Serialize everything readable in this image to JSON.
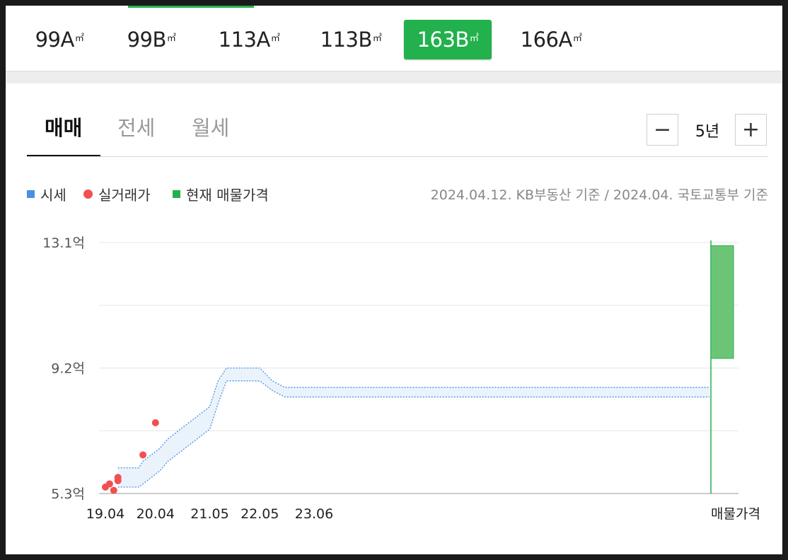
{
  "area_tabs": [
    {
      "label": "99A",
      "unit": "㎡",
      "active": false
    },
    {
      "label": "99B",
      "unit": "㎡",
      "active": false
    },
    {
      "label": "113A",
      "unit": "㎡",
      "active": false
    },
    {
      "label": "113B",
      "unit": "㎡",
      "active": false
    },
    {
      "label": "163B",
      "unit": "㎡",
      "active": true
    },
    {
      "label": "166A",
      "unit": "㎡",
      "active": false
    }
  ],
  "deal_tabs": [
    "매매",
    "전세",
    "월세"
  ],
  "period": {
    "minus": "−",
    "label": "5년",
    "plus": "+"
  },
  "legend": [
    {
      "label": "시세",
      "color": "#4a90e2",
      "shape": "square"
    },
    {
      "label": "실거래가",
      "color": "#f05050",
      "shape": "circle"
    },
    {
      "label": "현재 매물가격",
      "color": "#22b14c",
      "shape": "square"
    }
  ],
  "source_text": "2024.04.12. KB부동산 기준 / 2024.04. 국토교통부 기준",
  "chart_data": {
    "type": "line",
    "y_ticks": [
      "13.1억",
      "9.2억",
      "5.3억"
    ],
    "ylim": [
      5.3,
      13.1
    ],
    "x_ticks": [
      "19.04",
      "20.04",
      "21.05",
      "22.05",
      "23.06",
      "매물가격"
    ],
    "grid": true,
    "series": [
      {
        "name": "시세",
        "color": "#4a90e2",
        "style": "dotted band",
        "x": [
          "19.07",
          "19.12",
          "20.01",
          "20.03",
          "20.05",
          "20.07",
          "20.09",
          "20.11",
          "21.01",
          "21.03",
          "21.05",
          "21.07",
          "21.09",
          "21.12",
          "22.05",
          "22.08",
          "22.11",
          "23.03",
          "23.06",
          "23.09",
          "24.04"
        ],
        "low": [
          5.5,
          5.5,
          5.6,
          5.8,
          6.0,
          6.3,
          6.5,
          6.7,
          6.9,
          7.1,
          7.3,
          8.1,
          8.8,
          8.8,
          8.8,
          8.5,
          8.3,
          8.3,
          8.3,
          8.3,
          8.3
        ],
        "high": [
          6.1,
          6.1,
          6.3,
          6.5,
          6.7,
          7.0,
          7.2,
          7.4,
          7.6,
          7.8,
          8.0,
          8.8,
          9.2,
          9.2,
          9.2,
          8.8,
          8.6,
          8.6,
          8.6,
          8.6,
          8.6
        ]
      },
      {
        "name": "실거래가",
        "color": "#f05050",
        "style": "points",
        "x": [
          "19.04",
          "19.05",
          "19.06",
          "19.07",
          "19.07",
          "20.01",
          "20.04"
        ],
        "y": [
          5.5,
          5.6,
          5.4,
          5.7,
          5.8,
          6.5,
          7.5
        ]
      },
      {
        "name": "현재 매물가격",
        "color": "#22b14c",
        "style": "range bar",
        "x": [
          "매물가격"
        ],
        "low": [
          9.5
        ],
        "high": [
          13.0
        ]
      }
    ]
  }
}
